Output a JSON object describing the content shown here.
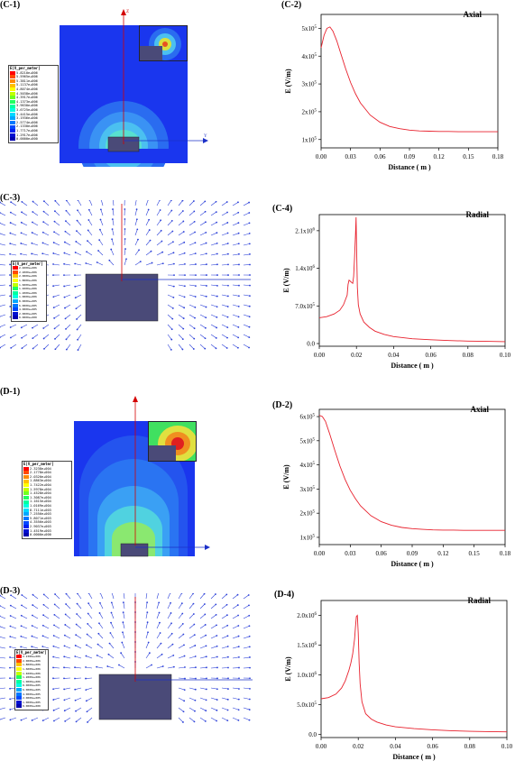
{
  "panels": {
    "c1": "(C-1)",
    "c2": "(C-2)",
    "c3": "(C-3)",
    "c4": "(C-4)",
    "d1": "(D-1)",
    "d2": "(D-2)",
    "d3": "(D-3)",
    "d4": "(D-4)"
  },
  "sim_c1": {
    "legend_title": "E[V_per_meter]",
    "legend_values": [
      "5.8210e+006",
      "5.5965e+006",
      "5.3811e+006",
      "5.1137e+006",
      "4.8074e+006",
      "4.5038e+006",
      "4.3917e+006",
      "4.1373e+006",
      "3.9630e+006",
      "3.6725e+006",
      "3.4415e+006",
      "3.1936e+006",
      "2.5774e+006",
      "2.1330e+006",
      "1.7717e+006",
      "1.2917e+006",
      "0.0000e+000"
    ],
    "axis_z": "Z",
    "axis_y": "Y"
  },
  "sim_c3": {
    "legend_title": "E[V_per_meter]",
    "legend_values": [
      "2.4000e+006",
      "2.2000e+006",
      "2.0000e+006",
      "1.8000e+006",
      "1.6000e+006",
      "1.4000e+006",
      "1.2000e+006",
      "1.0000e+006",
      "8.0000e+005",
      "6.0000e+005",
      "4.0000e+005",
      "2.0000e+005",
      "0.0000e+000"
    ]
  },
  "sim_d1": {
    "legend_title": "E[V_per_meter]",
    "legend_values": [
      "2.3238e+004",
      "2.1778e+004",
      "2.0320e+004",
      "1.8863e+004",
      "1.7422e+004",
      "1.5978e+004",
      "1.4528e+004",
      "1.3087e+004",
      "1.1615e+004",
      "1.0169e+004",
      "8.7111e+003",
      "7.2556e+003",
      "5.8071e+003",
      "4.3556e+003",
      "2.9037e+003",
      "1.4519e+003",
      "0.0000e+000"
    ]
  },
  "sim_d3": {
    "legend_title": "E[V_per_meter]",
    "legend_values": [
      "2.2380e+006",
      "2.0000e+006",
      "1.8000e+006",
      "1.6000e+006",
      "1.4000e+006",
      "1.2000e+006",
      "1.0000e+006",
      "8.0000e+005",
      "6.0000e+005",
      "4.0000e+005",
      "2.0000e+005",
      "1.0000e+005",
      "0.0000e+000"
    ]
  },
  "colors": {
    "curve": "#e8212d",
    "field_blue": "#1a36ee",
    "arrow": "#2a3fd8"
  },
  "chart_data": [
    {
      "id": "c2",
      "type": "line",
      "title": "Axial",
      "xlabel": "Distance ( m )",
      "ylabel": "E (V/m)",
      "xlim": [
        0,
        0.18
      ],
      "ylim": [
        0.7,
        5.5
      ],
      "xticks": [
        0.0,
        0.03,
        0.06,
        0.09,
        0.12,
        0.15,
        0.18
      ],
      "xtick_labels": [
        "0.00",
        "0.03",
        "0.06",
        "0.09",
        "0.12",
        "0.15",
        "0.18"
      ],
      "yticks": [
        1,
        2,
        3,
        4,
        5
      ],
      "ytick_labels": [
        "1x10",
        "2x10",
        "3x10",
        "4x10",
        "5x10"
      ],
      "ytick_exp": "5",
      "series": [
        {
          "x": [
            0,
            0.003,
            0.006,
            0.009,
            0.012,
            0.016,
            0.02,
            0.025,
            0.03,
            0.035,
            0.04,
            0.05,
            0.06,
            0.07,
            0.08,
            0.09,
            0.1,
            0.11,
            0.12,
            0.13,
            0.14,
            0.15,
            0.16,
            0.17,
            0.18
          ],
          "y": [
            4.3,
            4.75,
            5.0,
            5.05,
            4.9,
            4.55,
            4.1,
            3.55,
            3.05,
            2.65,
            2.32,
            1.88,
            1.62,
            1.47,
            1.39,
            1.34,
            1.31,
            1.3,
            1.29,
            1.29,
            1.28,
            1.28,
            1.28,
            1.28,
            1.28
          ]
        }
      ]
    },
    {
      "id": "c4",
      "type": "line",
      "title": "Radial",
      "xlabel": "Distance ( m )",
      "ylabel": "E (V/m)",
      "xlim": [
        0,
        0.1
      ],
      "ylim": [
        -0.05,
        2.4
      ],
      "xticks": [
        0.0,
        0.02,
        0.04,
        0.06,
        0.08,
        0.1
      ],
      "xtick_labels": [
        "0.00",
        "0.02",
        "0.04",
        "0.06",
        "0.08",
        "0.10"
      ],
      "yticks": [
        0,
        0.7,
        1.4,
        2.1
      ],
      "ytick_labels": [
        "0.0",
        "7.0x10",
        "1.4x10",
        "2.1x10"
      ],
      "ytick_exp_list": [
        "",
        "5",
        "6",
        "6"
      ],
      "series": [
        {
          "x": [
            0,
            0.004,
            0.008,
            0.011,
            0.013,
            0.015,
            0.0155,
            0.016,
            0.017,
            0.018,
            0.0185,
            0.019,
            0.0195,
            0.0198,
            0.02,
            0.0205,
            0.021,
            0.022,
            0.024,
            0.027,
            0.03,
            0.035,
            0.04,
            0.05,
            0.06,
            0.07,
            0.08,
            0.09,
            0.1
          ],
          "y": [
            0.48,
            0.5,
            0.55,
            0.62,
            0.72,
            0.9,
            1.1,
            1.18,
            1.15,
            1.12,
            1.25,
            1.6,
            2.05,
            2.35,
            1.95,
            1.05,
            0.72,
            0.55,
            0.4,
            0.3,
            0.23,
            0.17,
            0.13,
            0.09,
            0.07,
            0.055,
            0.045,
            0.04,
            0.035
          ]
        }
      ]
    },
    {
      "id": "d2",
      "type": "line",
      "title": "Axial",
      "xlabel": "Distance ( m )",
      "ylabel": "E (V/m)",
      "xlim": [
        0,
        0.18
      ],
      "ylim": [
        0.7,
        6.3
      ],
      "xticks": [
        0.0,
        0.03,
        0.06,
        0.09,
        0.12,
        0.15,
        0.18
      ],
      "xtick_labels": [
        "0.00",
        "0.03",
        "0.06",
        "0.09",
        "0.12",
        "0.15",
        "0.18"
      ],
      "yticks": [
        1,
        2,
        3,
        4,
        5,
        6
      ],
      "ytick_labels": [
        "1x10",
        "2x10",
        "3x10",
        "4x10",
        "5x10",
        "6x10"
      ],
      "ytick_exp": "5",
      "series": [
        {
          "x": [
            0,
            0.003,
            0.006,
            0.01,
            0.015,
            0.02,
            0.025,
            0.03,
            0.035,
            0.04,
            0.05,
            0.06,
            0.07,
            0.08,
            0.09,
            0.1,
            0.11,
            0.12,
            0.13,
            0.14,
            0.15,
            0.16,
            0.17,
            0.18
          ],
          "y": [
            6.05,
            6.0,
            5.8,
            5.3,
            4.6,
            3.95,
            3.4,
            2.95,
            2.6,
            2.3,
            1.9,
            1.65,
            1.5,
            1.41,
            1.36,
            1.33,
            1.31,
            1.3,
            1.3,
            1.29,
            1.29,
            1.29,
            1.29,
            1.29
          ]
        }
      ]
    },
    {
      "id": "d4",
      "type": "line",
      "title": "Radial",
      "xlabel": "Distance ( m )",
      "ylabel": "E (V/m)",
      "xlim": [
        0,
        0.1
      ],
      "ylim": [
        -0.05,
        2.25
      ],
      "xticks": [
        0.0,
        0.02,
        0.04,
        0.06,
        0.08,
        0.1
      ],
      "xtick_labels": [
        "0.00",
        "0.02",
        "0.04",
        "0.06",
        "0.08",
        "0.10"
      ],
      "yticks": [
        0,
        0.5,
        1.0,
        1.5,
        2.0
      ],
      "ytick_labels": [
        "0.0",
        "5.0x10",
        "1.0x10",
        "1.5x10",
        "2.0x10"
      ],
      "ytick_exp_list": [
        "",
        "5",
        "6",
        "6",
        "6"
      ],
      "series": [
        {
          "x": [
            0,
            0.004,
            0.008,
            0.011,
            0.013,
            0.015,
            0.016,
            0.017,
            0.018,
            0.0185,
            0.019,
            0.0195,
            0.02,
            0.0205,
            0.021,
            0.022,
            0.024,
            0.027,
            0.03,
            0.035,
            0.04,
            0.05,
            0.06,
            0.07,
            0.08,
            0.09,
            0.1
          ],
          "y": [
            0.6,
            0.62,
            0.68,
            0.78,
            0.9,
            1.08,
            1.2,
            1.35,
            1.6,
            1.8,
            1.98,
            2.0,
            1.7,
            1.2,
            0.85,
            0.55,
            0.35,
            0.26,
            0.21,
            0.16,
            0.13,
            0.1,
            0.08,
            0.065,
            0.055,
            0.05,
            0.045
          ]
        }
      ]
    }
  ]
}
